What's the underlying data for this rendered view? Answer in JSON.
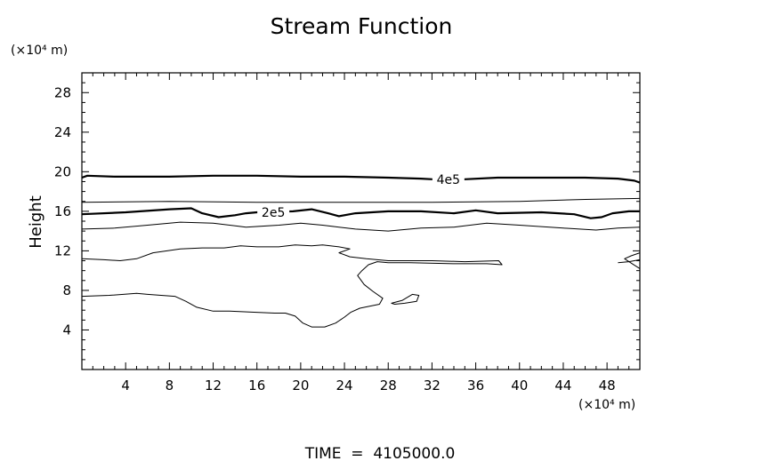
{
  "chart_data": {
    "type": "contour",
    "title": "Stream Function",
    "xlabel": "",
    "x_unit_label": "(×10⁴ m)",
    "ylabel": "Height",
    "y_unit_label": "(×10⁴ m)",
    "xlim": [
      0,
      51
    ],
    "ylim": [
      0,
      30
    ],
    "x_ticks": [
      4,
      8,
      12,
      16,
      20,
      24,
      28,
      32,
      36,
      40,
      44,
      48
    ],
    "y_ticks": [
      4,
      8,
      12,
      16,
      20,
      24,
      28
    ],
    "x_tick_labels": [
      "4",
      "8",
      "12",
      "16",
      "20",
      "24",
      "28",
      "32",
      "36",
      "40",
      "44",
      "48"
    ],
    "y_tick_labels": [
      "4",
      "8",
      "12",
      "16",
      "20",
      "24",
      "28"
    ],
    "grid": false,
    "footer": "TIME  =  4105000.0",
    "contours": [
      {
        "level": "4e5",
        "label": "4e5",
        "label_at": [
          33.5,
          19.2
        ],
        "emphasis": "bold",
        "points": [
          [
            0,
            19.4
          ],
          [
            0.5,
            19.6
          ],
          [
            3,
            19.5
          ],
          [
            8,
            19.5
          ],
          [
            12,
            19.6
          ],
          [
            16,
            19.6
          ],
          [
            20,
            19.5
          ],
          [
            24,
            19.5
          ],
          [
            28,
            19.4
          ],
          [
            31,
            19.3
          ],
          [
            32.6,
            19.2
          ],
          [
            34.4,
            19.2
          ],
          [
            38,
            19.4
          ],
          [
            42,
            19.4
          ],
          [
            46,
            19.4
          ],
          [
            49,
            19.3
          ],
          [
            50.5,
            19.1
          ],
          [
            51,
            18.9
          ]
        ]
      },
      {
        "level": "",
        "label": "",
        "emphasis": "thin",
        "points": [
          [
            0,
            16.9
          ],
          [
            8,
            17.0
          ],
          [
            16,
            16.9
          ],
          [
            24,
            16.9
          ],
          [
            32,
            16.9
          ],
          [
            40,
            17.0
          ],
          [
            46,
            17.2
          ],
          [
            51,
            17.3
          ]
        ]
      },
      {
        "level": "2e5",
        "label": "2e5",
        "label_at": [
          17.5,
          15.9
        ],
        "emphasis": "bold",
        "points": [
          [
            0,
            15.7
          ],
          [
            4,
            15.9
          ],
          [
            8,
            16.2
          ],
          [
            10,
            16.3
          ],
          [
            11,
            15.8
          ],
          [
            12.5,
            15.4
          ],
          [
            14,
            15.6
          ],
          [
            15,
            15.8
          ],
          [
            16,
            15.9
          ],
          [
            16.2,
            15.9
          ],
          [
            19.3,
            16.0
          ],
          [
            21,
            16.2
          ],
          [
            22.5,
            15.8
          ],
          [
            23.5,
            15.5
          ],
          [
            25,
            15.8
          ],
          [
            28,
            16.0
          ],
          [
            31,
            16.0
          ],
          [
            34,
            15.8
          ],
          [
            36,
            16.1
          ],
          [
            38,
            15.8
          ],
          [
            42,
            15.9
          ],
          [
            45,
            15.7
          ],
          [
            46.5,
            15.3
          ],
          [
            47.5,
            15.4
          ],
          [
            48.5,
            15.8
          ],
          [
            50,
            16.0
          ],
          [
            51,
            16.0
          ]
        ]
      },
      {
        "level": "",
        "label": "",
        "emphasis": "thin",
        "points": [
          [
            0,
            14.2
          ],
          [
            3,
            14.3
          ],
          [
            6,
            14.6
          ],
          [
            9,
            14.9
          ],
          [
            12,
            14.8
          ],
          [
            15,
            14.4
          ],
          [
            18,
            14.6
          ],
          [
            20,
            14.8
          ],
          [
            22,
            14.6
          ],
          [
            25,
            14.2
          ],
          [
            28,
            14.0
          ],
          [
            31,
            14.3
          ],
          [
            34,
            14.4
          ],
          [
            37,
            14.8
          ],
          [
            40,
            14.6
          ],
          [
            44,
            14.3
          ],
          [
            47,
            14.1
          ],
          [
            49,
            14.3
          ],
          [
            51,
            14.4
          ]
        ]
      },
      {
        "level": "",
        "label": "",
        "emphasis": "thin",
        "points": [
          [
            0,
            11.2
          ],
          [
            2,
            11.1
          ],
          [
            3.5,
            11.0
          ],
          [
            5,
            11.2
          ],
          [
            6.5,
            11.8
          ],
          [
            9,
            12.2
          ],
          [
            11,
            12.3
          ],
          [
            13,
            12.3
          ],
          [
            14.5,
            12.5
          ],
          [
            16,
            12.4
          ],
          [
            18,
            12.4
          ],
          [
            19.5,
            12.6
          ],
          [
            21,
            12.5
          ],
          [
            22,
            12.6
          ],
          [
            23.5,
            12.4
          ],
          [
            24.5,
            12.2
          ],
          [
            23.5,
            11.8
          ],
          [
            24.5,
            11.4
          ],
          [
            26,
            11.2
          ],
          [
            28,
            11.0
          ],
          [
            32,
            11.0
          ],
          [
            35,
            10.9
          ],
          [
            38.1,
            11.0
          ],
          [
            38.4,
            10.6
          ],
          [
            37,
            10.7
          ],
          [
            34,
            10.7
          ],
          [
            30,
            10.8
          ],
          [
            28,
            10.8
          ],
          [
            27,
            10.9
          ],
          [
            26.2,
            10.6
          ],
          [
            25.6,
            10.0
          ],
          [
            25.2,
            9.5
          ],
          [
            25.8,
            8.6
          ],
          [
            26.6,
            7.9
          ],
          [
            27.5,
            7.2
          ],
          [
            27.2,
            6.6
          ],
          [
            26.3,
            6.4
          ],
          [
            25.4,
            6.2
          ],
          [
            24.6,
            5.8
          ],
          [
            24.0,
            5.3
          ],
          [
            23.2,
            4.7
          ],
          [
            22.2,
            4.3
          ],
          [
            21.0,
            4.3
          ],
          [
            20.2,
            4.7
          ],
          [
            19.5,
            5.4
          ],
          [
            18.6,
            5.7
          ],
          [
            17.6,
            5.7
          ],
          [
            15.5,
            5.8
          ],
          [
            13.5,
            5.9
          ],
          [
            12.0,
            5.9
          ],
          [
            10.5,
            6.3
          ],
          [
            9.5,
            6.9
          ],
          [
            8.5,
            7.4
          ],
          [
            6,
            7.6
          ],
          [
            5,
            7.7
          ],
          [
            2.5,
            7.5
          ],
          [
            0,
            7.4
          ]
        ]
      },
      {
        "level": "",
        "label": "",
        "emphasis": "thin",
        "closed": true,
        "points": [
          [
            28.3,
            6.7
          ],
          [
            29.3,
            7.0
          ],
          [
            30.2,
            7.6
          ],
          [
            30.8,
            7.5
          ],
          [
            30.6,
            6.9
          ],
          [
            29.5,
            6.7
          ],
          [
            28.6,
            6.6
          ]
        ]
      },
      {
        "level": "",
        "label": "",
        "emphasis": "thin",
        "points": [
          [
            49.0,
            10.8
          ],
          [
            50.0,
            10.9
          ],
          [
            51,
            11.1
          ]
        ]
      },
      {
        "level": "",
        "label": "",
        "emphasis": "thin",
        "points": [
          [
            51,
            11.8
          ],
          [
            50.2,
            11.5
          ],
          [
            49.6,
            11.2
          ],
          [
            50.3,
            10.7
          ],
          [
            51,
            10.2
          ]
        ]
      }
    ]
  }
}
